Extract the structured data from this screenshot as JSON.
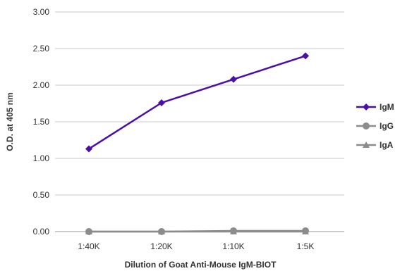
{
  "chart_data": {
    "type": "line",
    "categories": [
      "1:40K",
      "1:20K",
      "1:10K",
      "1:5K"
    ],
    "series": [
      {
        "name": "IgM",
        "values": [
          1.13,
          1.76,
          2.08,
          2.4
        ],
        "color": "#4b0fa8",
        "marker": "diamond"
      },
      {
        "name": "IgG",
        "values": [
          0.0,
          0.0,
          0.01,
          0.01
        ],
        "color": "#8c8c8c",
        "marker": "circle"
      },
      {
        "name": "IgA",
        "values": [
          0.0,
          0.0,
          0.0,
          0.0
        ],
        "color": "#8c8c8c",
        "marker": "triangle"
      }
    ],
    "xlabel": "Dilution of Goat Anti-Mouse IgM-BIOT",
    "ylabel": "O.D. at 405 nm",
    "ylim": [
      0,
      3
    ],
    "yticks": [
      "0.00",
      "0.50",
      "1.00",
      "1.50",
      "2.00",
      "2.50",
      "3.00"
    ],
    "grid": "horizontal",
    "legend": "right"
  }
}
